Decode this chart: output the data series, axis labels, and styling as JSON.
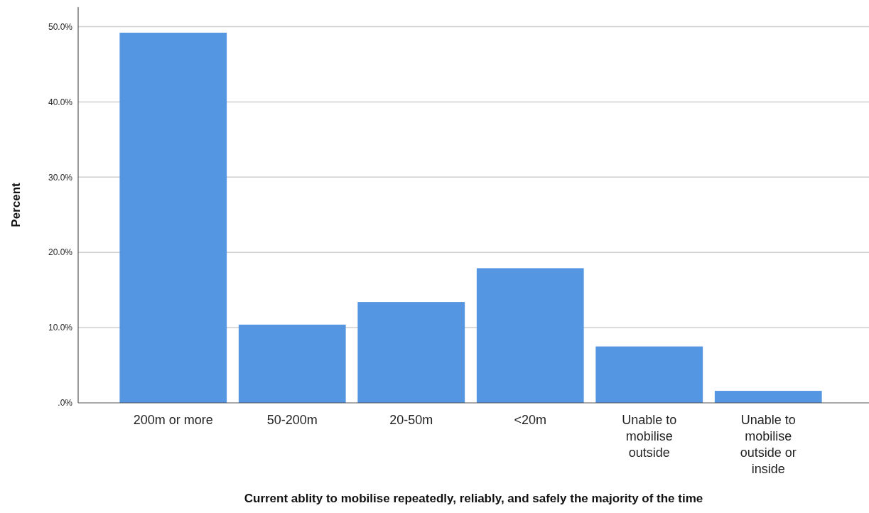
{
  "chart_data": {
    "type": "bar",
    "xlabel": "Current ablity to mobilise repeatedly, reliably, and safely the majority of the time",
    "ylabel": "Percent",
    "categories": [
      "200m or more",
      "50-200m",
      "20-50m",
      "<20m",
      "Unable to mobilise outside",
      "Unable to mobilise outside or inside"
    ],
    "values": [
      49.2,
      10.4,
      13.4,
      17.9,
      7.5,
      1.6
    ],
    "color": "#5596e3",
    "ylim": [
      0,
      52.6
    ],
    "yticks": [
      {
        "value": 0,
        "label": ".0%"
      },
      {
        "value": 10,
        "label": "10.0%"
      },
      {
        "value": 20,
        "label": "20.0%"
      },
      {
        "value": 30,
        "label": "30.0%"
      },
      {
        "value": 40,
        "label": "40.0%"
      },
      {
        "value": 50,
        "label": "50.0%"
      }
    ],
    "grid": "y"
  }
}
